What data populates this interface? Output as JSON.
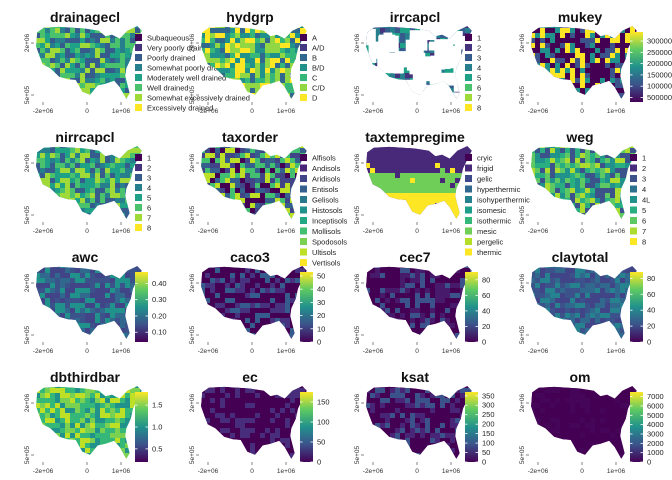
{
  "axes": {
    "x_ticks": [
      "-2e+06",
      "0",
      "1e+06"
    ],
    "y_ticks": [
      "5e+05",
      "2e+06"
    ]
  },
  "chart_data": [
    {
      "type": "heatmap",
      "title": "drainagecl",
      "legend": "categorical",
      "categories": [
        "Subaqueous",
        "Very poorly drained",
        "Poorly drained",
        "Somewhat poorly drained",
        "Moderately well drained",
        "Well drained",
        "Somewhat excessively drained",
        "Excessively drained"
      ],
      "colors": [
        "#440154",
        "#46337e",
        "#365c8d",
        "#277f8e",
        "#1fa187",
        "#4ac16d",
        "#a0da39",
        "#fde725"
      ],
      "map_palette": [
        "#4ac16d",
        "#1fa187",
        "#277f8e",
        "#a0da39",
        "#365c8d"
      ]
    },
    {
      "type": "heatmap",
      "title": "hydgrp",
      "legend": "categorical",
      "categories": [
        "A",
        "A/D",
        "B",
        "B/D",
        "C",
        "C/D",
        "D"
      ],
      "colors": [
        "#440154",
        "#443983",
        "#31688e",
        "#21918c",
        "#35b779",
        "#90d743",
        "#fde725"
      ],
      "map_palette": [
        "#fde725",
        "#35b779",
        "#21918c",
        "#90d743",
        "#31688e"
      ]
    },
    {
      "type": "heatmap",
      "title": "irrcapcl",
      "legend": "categorical",
      "sparse": true,
      "categories": [
        "1",
        "2",
        "3",
        "4",
        "5",
        "6",
        "7",
        "8"
      ],
      "colors": [
        "#440154",
        "#46337e",
        "#365c8d",
        "#277f8e",
        "#1fa187",
        "#4ac16d",
        "#a0da39",
        "#fde725"
      ],
      "map_palette": [
        "#365c8d",
        "#277f8e",
        "#46337e",
        "#1fa187"
      ]
    },
    {
      "type": "heatmap",
      "title": "mukey",
      "legend": "continuous",
      "tick_labels": [
        "3000000",
        "2500000",
        "2000000",
        "1500000",
        "1000000",
        "500000"
      ],
      "tick_values": [
        3000000,
        2500000,
        2000000,
        1500000,
        1000000,
        500000
      ],
      "range": [
        300000,
        3400000
      ],
      "map_palette": [
        "#440154",
        "#3b528b",
        "#440154",
        "#fde725",
        "#21918c"
      ]
    },
    {
      "type": "heatmap",
      "title": "nirrcapcl",
      "legend": "categorical",
      "categories": [
        "1",
        "2",
        "3",
        "4",
        "5",
        "6",
        "7",
        "8"
      ],
      "colors": [
        "#440154",
        "#46337e",
        "#365c8d",
        "#277f8e",
        "#1fa187",
        "#4ac16d",
        "#a0da39",
        "#fde725"
      ],
      "map_palette": [
        "#277f8e",
        "#1fa187",
        "#365c8d",
        "#4ac16d",
        "#a0da39"
      ]
    },
    {
      "type": "heatmap",
      "title": "taxorder",
      "legend": "categorical",
      "categories": [
        "Alfisols",
        "Andisols",
        "Aridisols",
        "Entisols",
        "Gelisols",
        "Histosols",
        "Inceptisols",
        "Mollisols",
        "Spodosols",
        "Ultisols",
        "Vertisols"
      ],
      "colors": [
        "#440154",
        "#482576",
        "#414487",
        "#35608d",
        "#2a788e",
        "#21918c",
        "#22a884",
        "#43bf71",
        "#7ad151",
        "#bddf26",
        "#fde725"
      ],
      "map_palette": [
        "#43bf71",
        "#35608d",
        "#440154",
        "#bddf26",
        "#414487"
      ]
    },
    {
      "type": "heatmap",
      "title": "taxtempregime",
      "legend": "categorical",
      "categories": [
        "cryic",
        "frigid",
        "gelic",
        "hyperthermic",
        "isohyperthermic",
        "isomesic",
        "isothermic",
        "mesic",
        "pergelic",
        "thermic"
      ],
      "colors": [
        "#440154",
        "#482878",
        "#3e4a89",
        "#31688e",
        "#26828e",
        "#1f9e89",
        "#35b779",
        "#6ece58",
        "#b5de2b",
        "#fde725"
      ],
      "map_palette": [
        "#482878",
        "#6ece58",
        "#fde725"
      ]
    },
    {
      "type": "heatmap",
      "title": "weg",
      "legend": "categorical",
      "categories": [
        "1",
        "2",
        "3",
        "4",
        "4L",
        "5",
        "6",
        "7",
        "8"
      ],
      "colors": [
        "#440154",
        "#472d7b",
        "#3b528b",
        "#2c728e",
        "#21918c",
        "#28ae80",
        "#5ec962",
        "#addc30",
        "#fde725"
      ],
      "map_palette": [
        "#5ec962",
        "#28ae80",
        "#21918c",
        "#addc30",
        "#3b528b"
      ]
    },
    {
      "type": "heatmap",
      "title": "awc",
      "legend": "continuous",
      "tick_labels": [
        "0.40",
        "0.30",
        "0.20",
        "0.10"
      ],
      "tick_values": [
        0.4,
        0.3,
        0.2,
        0.1
      ],
      "range": [
        0.04,
        0.47
      ],
      "map_palette": [
        "#3b528b",
        "#31688e",
        "#21918c",
        "#414487"
      ]
    },
    {
      "type": "heatmap",
      "title": "caco3",
      "legend": "continuous",
      "tick_labels": [
        "50",
        "40",
        "30",
        "20",
        "10",
        "0"
      ],
      "tick_values": [
        50,
        40,
        30,
        20,
        10,
        0
      ],
      "range": [
        0,
        53
      ],
      "map_palette": [
        "#440154",
        "#46327e",
        "#365c8d",
        "#440154"
      ]
    },
    {
      "type": "heatmap",
      "title": "cec7",
      "legend": "continuous",
      "tick_labels": [
        "80",
        "60",
        "40",
        "20",
        "0"
      ],
      "tick_values": [
        80,
        60,
        40,
        20,
        0
      ],
      "range": [
        0,
        90
      ],
      "map_palette": [
        "#440154",
        "#481a6c",
        "#440154",
        "#3b528b"
      ]
    },
    {
      "type": "heatmap",
      "title": "claytotal",
      "legend": "continuous",
      "tick_labels": [
        "80",
        "60",
        "40",
        "20",
        "0"
      ],
      "tick_values": [
        80,
        60,
        40,
        20,
        0
      ],
      "range": [
        0,
        88
      ],
      "map_palette": [
        "#31688e",
        "#3b528b",
        "#26828e",
        "#414487"
      ]
    },
    {
      "type": "heatmap",
      "title": "dbthirdbar",
      "legend": "continuous",
      "tick_labels": [
        "1.5",
        "1.0",
        "0.5"
      ],
      "tick_values": [
        1.5,
        1.0,
        0.5
      ],
      "range": [
        0.2,
        1.8
      ],
      "map_palette": [
        "#7ad151",
        "#bddf26",
        "#35b779",
        "#21918c"
      ]
    },
    {
      "type": "heatmap",
      "title": "ec",
      "legend": "continuous",
      "tick_labels": [
        "150",
        "100",
        "50",
        "0"
      ],
      "tick_values": [
        150,
        100,
        50,
        0
      ],
      "range": [
        0,
        175
      ],
      "map_palette": [
        "#440154",
        "#472d7b",
        "#440154"
      ]
    },
    {
      "type": "heatmap",
      "title": "ksat",
      "legend": "continuous",
      "tick_labels": [
        "350",
        "300",
        "250",
        "200",
        "150",
        "100",
        "50",
        "0"
      ],
      "tick_values": [
        350,
        300,
        250,
        200,
        150,
        100,
        50,
        0
      ],
      "range": [
        0,
        370
      ],
      "map_palette": [
        "#440154",
        "#482576",
        "#440154",
        "#3b528b"
      ]
    },
    {
      "type": "heatmap",
      "title": "om",
      "legend": "continuous",
      "tick_labels": [
        "7000",
        "6000",
        "5000",
        "4000",
        "3000",
        "2000",
        "1000",
        "0"
      ],
      "tick_values": [
        7000,
        6000,
        5000,
        4000,
        3000,
        2000,
        1000,
        0
      ],
      "range": [
        0,
        7500
      ],
      "map_palette": [
        "#440154",
        "#440154",
        "#450559"
      ]
    }
  ]
}
